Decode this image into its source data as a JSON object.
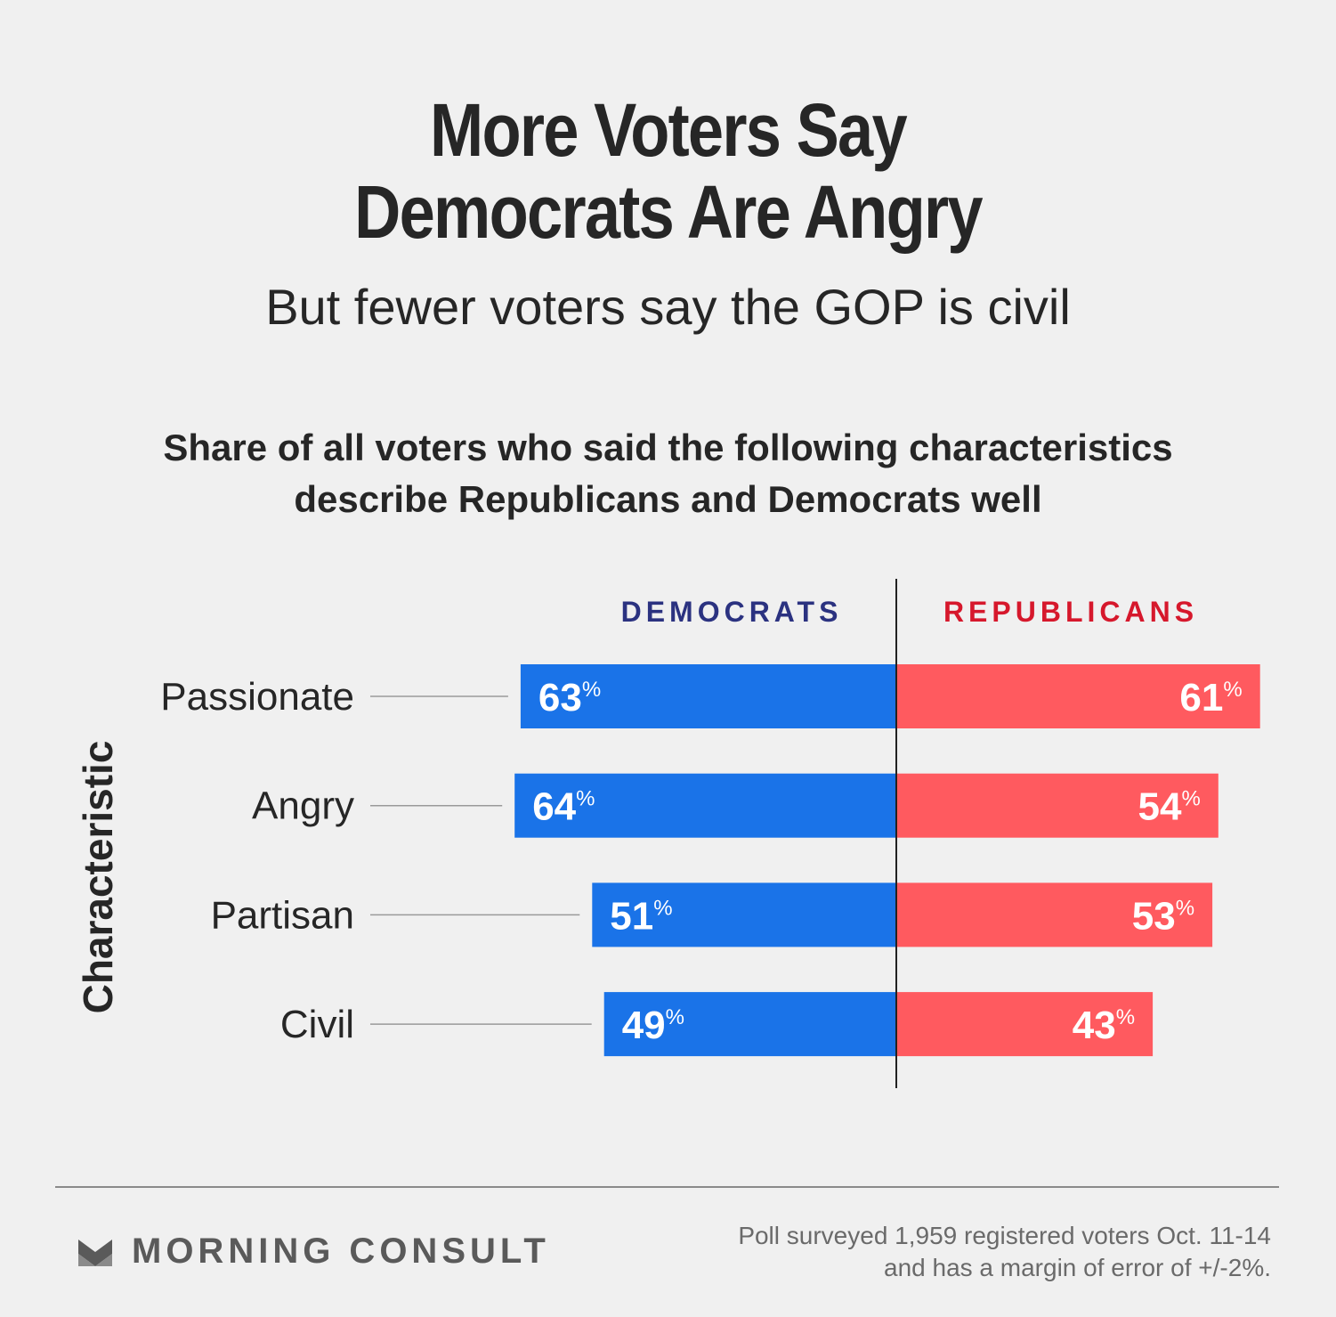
{
  "header": {
    "title_line1": "More Voters Say",
    "title_line2": "Democrats Are Angry",
    "subtitle": "But fewer voters say the GOP is civil"
  },
  "chart_data": {
    "type": "bar",
    "orientation": "horizontal-diverging",
    "title": "Share of all voters who said the following characteristics describe Republicans and Democrats well",
    "title_line1": "Share of all voters who said the following characteristics",
    "title_line2": "describe Republicans and Democrats well",
    "ylabel": "Characteristic",
    "categories": [
      "Passionate",
      "Angry",
      "Partisan",
      "Civil"
    ],
    "series": [
      {
        "name": "DEMOCRATS",
        "side": "left",
        "color": "#1a73e8",
        "label_color": "#2b3280",
        "values": [
          63,
          64,
          51,
          49
        ]
      },
      {
        "name": "REPUBLICANS",
        "side": "right",
        "color": "#ff5a5f",
        "label_color": "#d6182c",
        "values": [
          61,
          54,
          53,
          43
        ]
      }
    ],
    "value_suffix": "%",
    "grid": false
  },
  "footer": {
    "brand": "MORNING CONSULT",
    "brand_icon": "morning-consult-logo-icon",
    "note_line1": "Poll surveyed 1,959 registered voters Oct. 11-14",
    "note_line2": "and has a margin of error of +/-2%."
  }
}
